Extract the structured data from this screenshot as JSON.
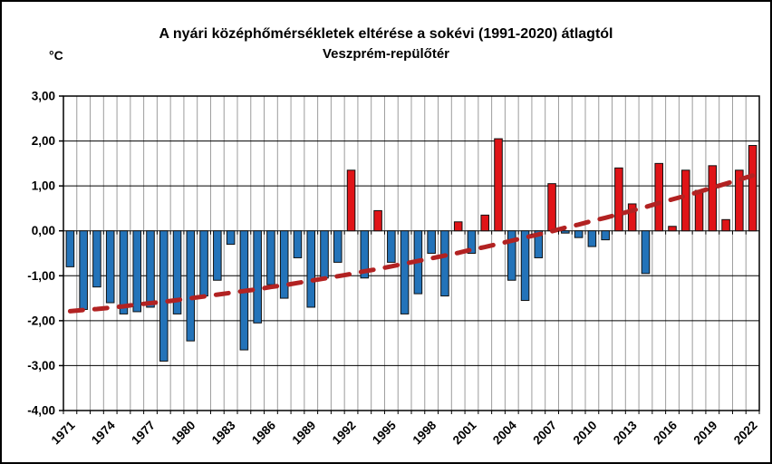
{
  "header": {
    "title_line1": "A nyári középhőmérsékletek eltérése a sokévi (1991-2020) átlagtól",
    "title_line2": "Veszprém-repülőtér",
    "unit_label": "°C"
  },
  "chart_data": {
    "type": "bar",
    "title": "A nyári középhőmérsékletek eltérése a sokévi (1991-2020) átlagtól",
    "subtitle": "Veszprém-repülőtér",
    "ylabel": "°C",
    "xlabel": "",
    "ylim": [
      -4,
      3
    ],
    "grid": true,
    "legend": false,
    "y_tick_values": [
      3,
      2,
      1,
      0,
      -1,
      -2,
      -3,
      -4
    ],
    "y_tick_labels": [
      "3,00",
      "2,00",
      "1,00",
      "0,00",
      "-1,00",
      "-2,00",
      "-3,00",
      "-4,00"
    ],
    "x_tick_labels": [
      "1971",
      "1974",
      "1977",
      "1980",
      "1983",
      "1986",
      "1989",
      "1992",
      "1995",
      "1998",
      "2001",
      "2004",
      "2007",
      "2010",
      "2013",
      "2016",
      "2019",
      "2022"
    ],
    "years": [
      1971,
      1972,
      1973,
      1974,
      1975,
      1976,
      1977,
      1978,
      1979,
      1980,
      1981,
      1982,
      1983,
      1984,
      1985,
      1986,
      1987,
      1988,
      1989,
      1990,
      1991,
      1992,
      1993,
      1994,
      1995,
      1996,
      1997,
      1998,
      1999,
      2000,
      2001,
      2002,
      2003,
      2004,
      2005,
      2006,
      2007,
      2008,
      2009,
      2010,
      2011,
      2012,
      2013,
      2014,
      2015,
      2016,
      2017,
      2018,
      2019,
      2020,
      2021,
      2022
    ],
    "values": [
      -0.8,
      -1.75,
      -1.25,
      -1.6,
      -1.85,
      -1.8,
      -1.7,
      -2.9,
      -1.85,
      -2.45,
      -1.45,
      -1.1,
      -0.3,
      -2.65,
      -2.05,
      -1.2,
      -1.5,
      -0.6,
      -1.7,
      -1.05,
      -0.7,
      1.35,
      -1.05,
      0.45,
      -0.7,
      -1.85,
      -1.4,
      -0.5,
      -1.45,
      0.2,
      -0.5,
      0.35,
      2.05,
      -1.1,
      -1.55,
      -0.6,
      1.05,
      -0.05,
      -0.15,
      -0.35,
      -0.2,
      1.4,
      0.6,
      -0.95,
      1.5,
      0.1,
      1.35,
      0.9,
      1.45,
      0.25,
      1.35,
      1.9
    ],
    "trend_name": "trend-dashed-line",
    "trend": [
      -1.79,
      -1.76,
      -1.74,
      -1.71,
      -1.68,
      -1.64,
      -1.61,
      -1.58,
      -1.54,
      -1.5,
      -1.46,
      -1.42,
      -1.38,
      -1.34,
      -1.3,
      -1.25,
      -1.21,
      -1.16,
      -1.11,
      -1.06,
      -1.01,
      -0.96,
      -0.9,
      -0.85,
      -0.79,
      -0.73,
      -0.67,
      -0.61,
      -0.55,
      -0.49,
      -0.42,
      -0.36,
      -0.29,
      -0.22,
      -0.15,
      -0.08,
      -0.01,
      0.07,
      0.14,
      0.22,
      0.29,
      0.37,
      0.45,
      0.53,
      0.62,
      0.7,
      0.78,
      0.87,
      0.96,
      1.05,
      1.14,
      1.23
    ],
    "colors": {
      "positive": "#E01418",
      "negative": "#2373B9",
      "bar_border": "#111111",
      "trend": "#B22222",
      "h_grid": "#000000",
      "v_grid": "#9C9C9C",
      "plot_border": "#000000",
      "text": "#000000"
    }
  }
}
